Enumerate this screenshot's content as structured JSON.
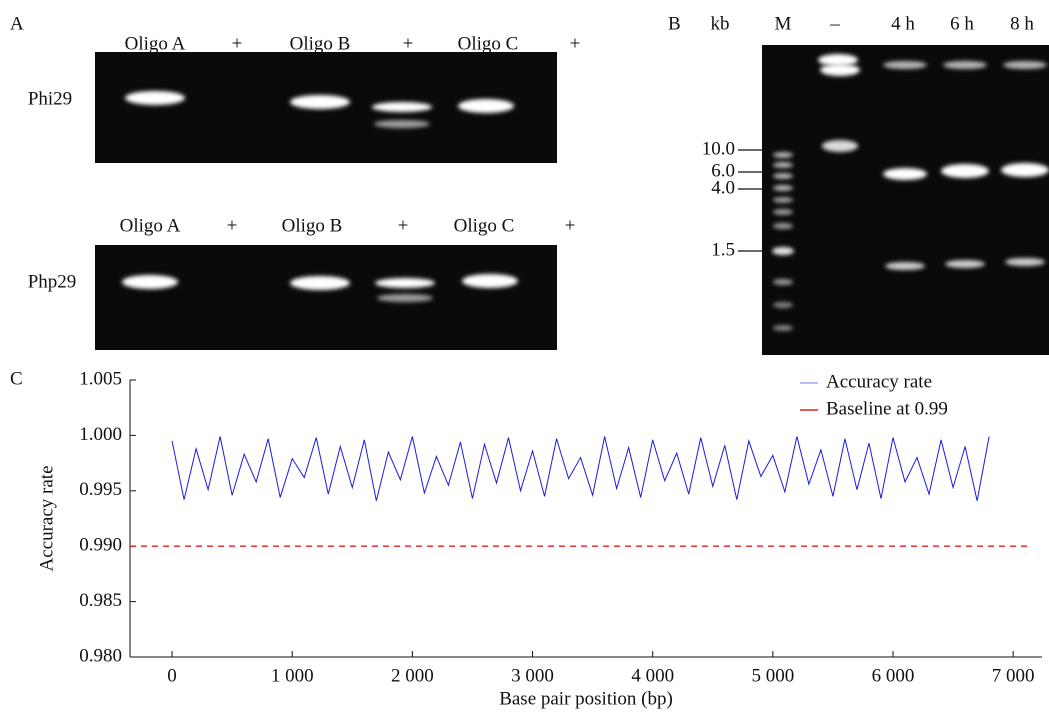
{
  "panel_a": {
    "label": "A",
    "top": {
      "row_label": "Phi29",
      "lanes": [
        "Oligo A",
        "+",
        "Oligo B",
        "+",
        "Oligo C",
        "+"
      ]
    },
    "bottom": {
      "row_label": "Php29",
      "lanes": [
        "Oligo A",
        "+",
        "Oligo B",
        "+",
        "Oligo C",
        "+"
      ]
    }
  },
  "panel_b": {
    "label": "B",
    "unit": "kb",
    "lanes": [
      "M",
      "–",
      "4 h",
      "6 h",
      "8 h"
    ],
    "sizes": [
      "10.0",
      "6.0",
      "4.0",
      "1.5"
    ]
  },
  "panel_c": {
    "label": "C",
    "chart_data": {
      "type": "line",
      "xlabel": "Base pair position (bp)",
      "ylabel": "Accuracy rate",
      "xlim": [
        -350,
        7240
      ],
      "ylim": [
        0.98,
        1.005
      ],
      "xticks": [
        0,
        {
          "value": 1000,
          "label": "1 000"
        },
        {
          "value": 2000,
          "label": "2 000"
        },
        {
          "value": 3000,
          "label": "3 000"
        },
        {
          "value": 4000,
          "label": "4 000"
        },
        {
          "value": 5000,
          "label": "5 000"
        },
        {
          "value": 6000,
          "label": "6 000"
        },
        {
          "value": 7000,
          "label": "7 000"
        }
      ],
      "yticks": [
        {
          "value": 0.98,
          "label": "0.980"
        },
        {
          "value": 0.985,
          "label": "0.985"
        },
        {
          "value": 0.99,
          "label": "0.990"
        },
        {
          "value": 0.995,
          "label": "0.995"
        },
        {
          "value": 1.0,
          "label": "1.000"
        },
        {
          "value": 1.005,
          "label": "1.005"
        }
      ],
      "x": [
        0,
        100,
        200,
        300,
        400,
        500,
        600,
        700,
        800,
        900,
        1000,
        1100,
        1200,
        1300,
        1400,
        1500,
        1600,
        1700,
        1800,
        1900,
        2000,
        2100,
        2200,
        2300,
        2400,
        2500,
        2600,
        2700,
        2800,
        2900,
        3000,
        3100,
        3200,
        3300,
        3400,
        3500,
        3600,
        3700,
        3800,
        3900,
        4000,
        4100,
        4200,
        4300,
        4400,
        4500,
        4600,
        4700,
        4800,
        4900,
        5000,
        5100,
        5200,
        5300,
        5400,
        5500,
        5600,
        5700,
        5800,
        5900,
        6000,
        6100,
        6200,
        6300,
        6400,
        6500,
        6600,
        6700,
        6800
      ],
      "series": [
        {
          "name": "Accuracy rate",
          "color": "#1a1ae6",
          "values": [
            0.9995,
            0.9942,
            0.9988,
            0.9951,
            0.9999,
            0.9946,
            0.9983,
            0.9958,
            0.9997,
            0.9944,
            0.9979,
            0.9962,
            0.9998,
            0.9947,
            0.999,
            0.9953,
            0.9996,
            0.9941,
            0.9985,
            0.996,
            0.9999,
            0.9948,
            0.9981,
            0.9955,
            0.9994,
            0.9943,
            0.9992,
            0.9957,
            0.9998,
            0.995,
            0.9986,
            0.9945,
            0.9997,
            0.9961,
            0.998,
            0.9946,
            0.9999,
            0.9952,
            0.9989,
            0.9944,
            0.9996,
            0.9959,
            0.9984,
            0.9947,
            0.9998,
            0.9954,
            0.9991,
            0.9942,
            0.9995,
            0.9963,
            0.9982,
            0.9949,
            0.9999,
            0.9956,
            0.9987,
            0.9945,
            0.9997,
            0.9951,
            0.9993,
            0.9943,
            0.9998,
            0.9958,
            0.998,
            0.9947,
            0.9996,
            0.9953,
            0.999,
            0.9941,
            0.9999
          ]
        }
      ],
      "baseline": {
        "name": "Baseline at 0.99",
        "value": 0.99,
        "color": "#e02020"
      }
    }
  }
}
